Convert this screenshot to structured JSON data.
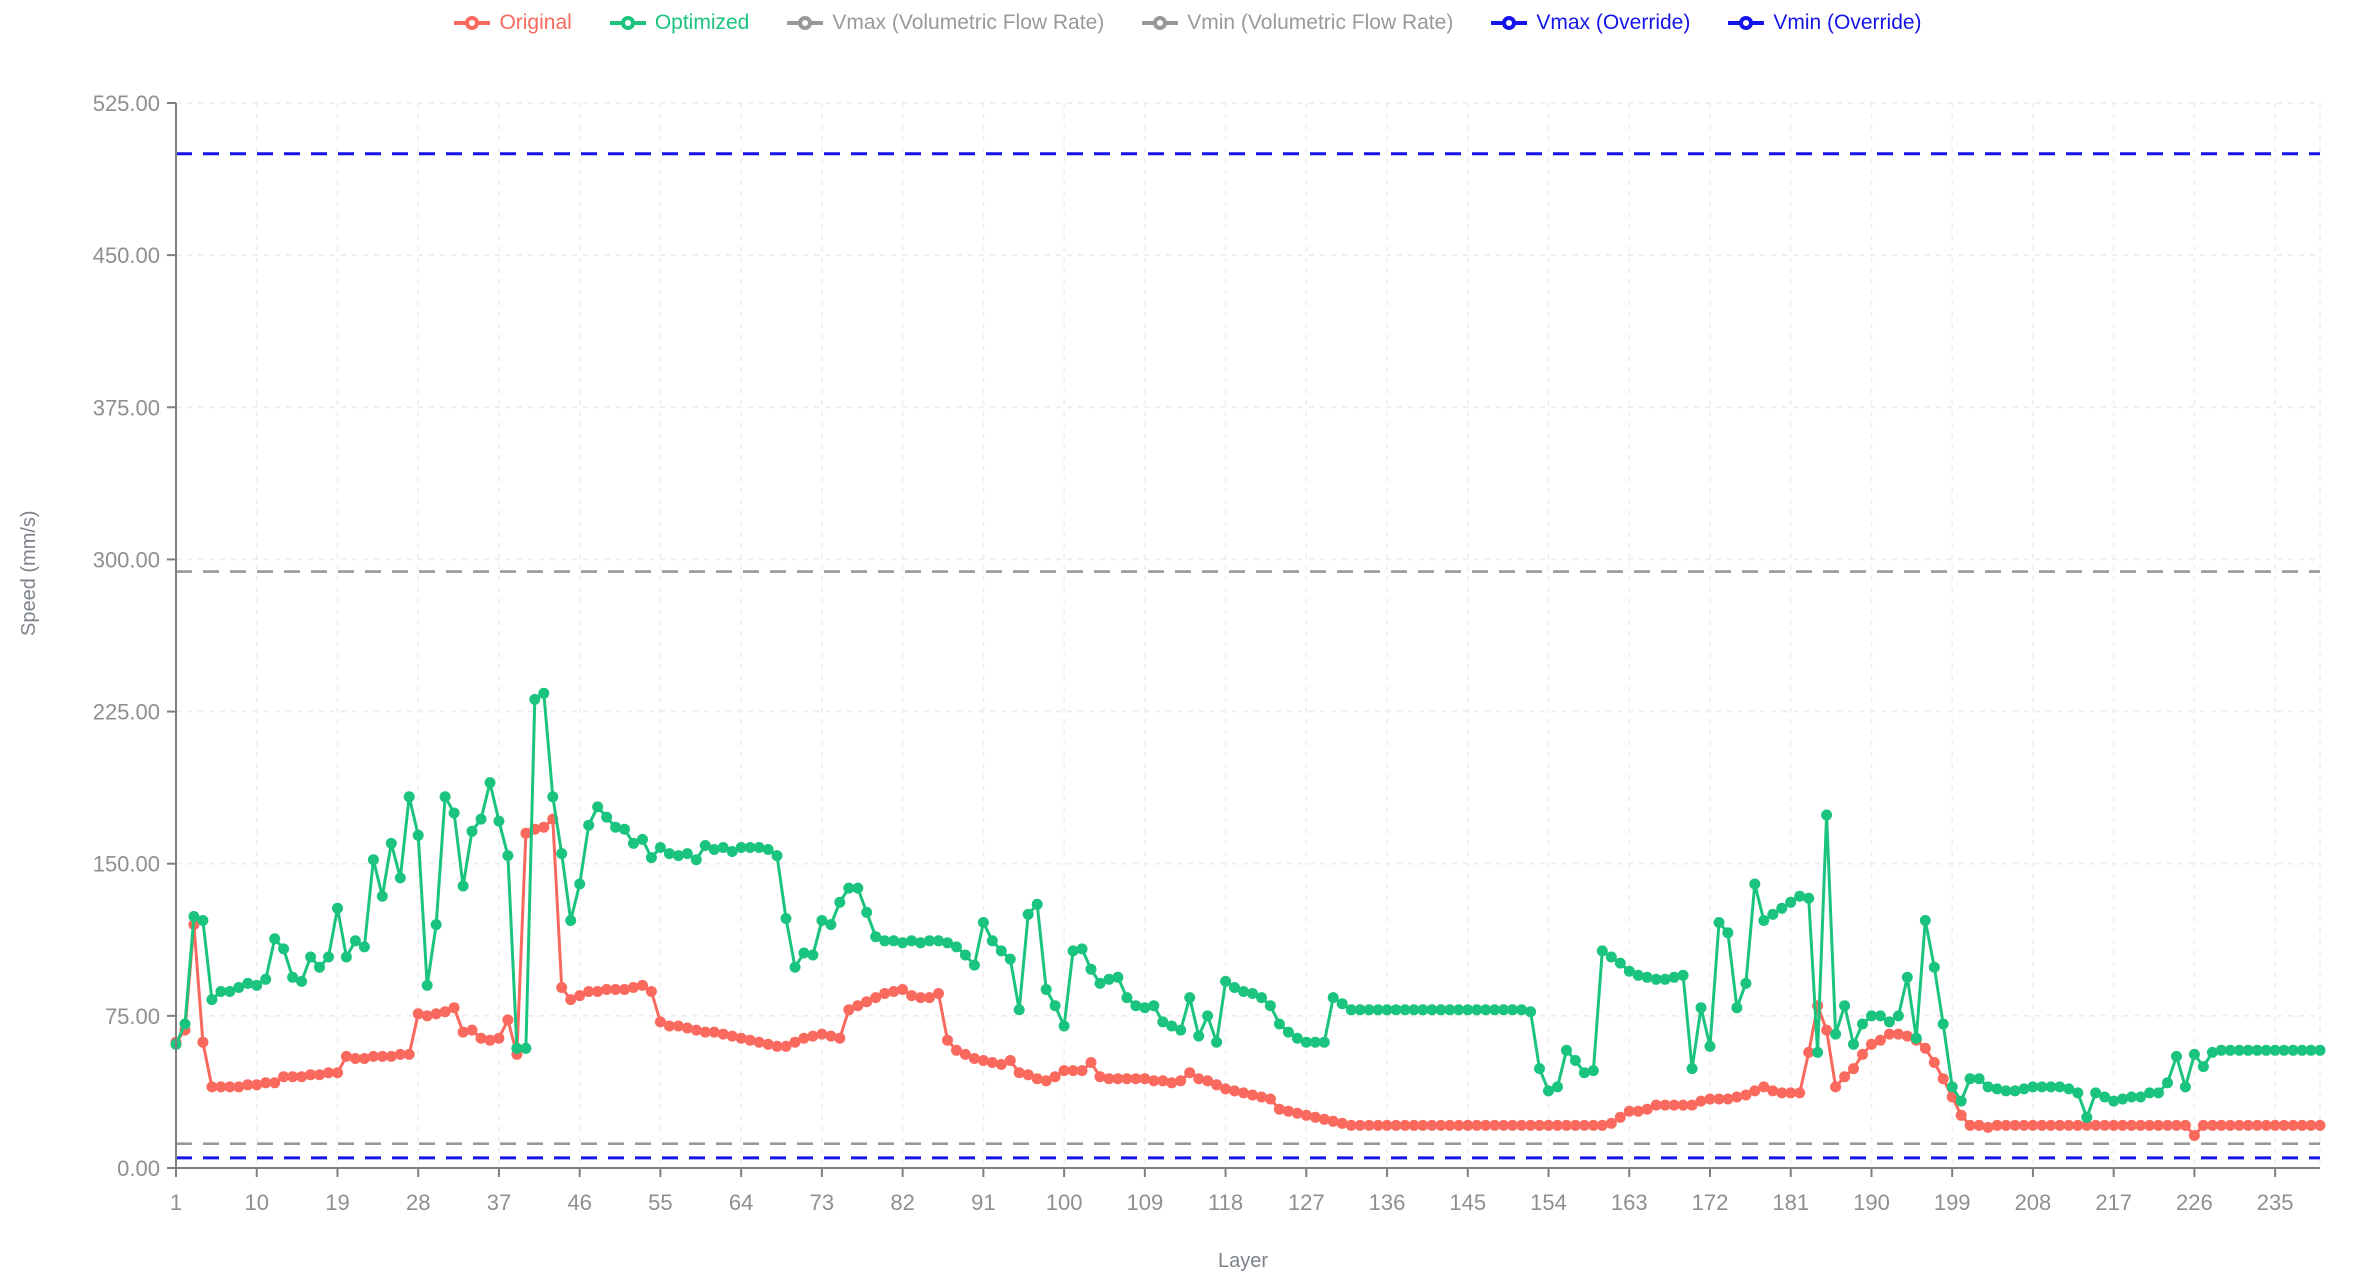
{
  "axes": {
    "x_title": "Layer",
    "y_title": "Speed (mm/s)",
    "y_tick_labels": [
      "0.00",
      "75.00",
      "150.00",
      "225.00",
      "300.00",
      "375.00",
      "450.00",
      "525.00"
    ],
    "x_tick_labels": [
      1,
      10,
      19,
      28,
      37,
      46,
      55,
      64,
      73,
      82,
      91,
      100,
      109,
      118,
      127,
      136,
      145,
      154,
      163,
      172,
      181,
      190,
      199,
      208,
      217,
      226,
      235
    ]
  },
  "legend": {
    "items": [
      {
        "label": "Original",
        "color": "#f9695e"
      },
      {
        "label": "Optimized",
        "color": "#1bc47e"
      },
      {
        "label": "Vmax (Volumetric Flow Rate)",
        "color": "#999999"
      },
      {
        "label": "Vmin (Volumetric Flow Rate)",
        "color": "#999999"
      },
      {
        "label": "Vmax (Override)",
        "color": "#1414e8"
      },
      {
        "label": "Vmin (Override)",
        "color": "#1414e8"
      }
    ]
  },
  "chart_data": {
    "type": "line",
    "title": "",
    "xlabel": "Layer",
    "ylabel": "Speed (mm/s)",
    "x_count": 240,
    "x_start": 1,
    "x_tick_step": 9,
    "ylim": [
      0,
      525
    ],
    "y_tick_step": 75,
    "grid": true,
    "legend_position": "top",
    "series": [
      {
        "name": "Original",
        "kind": "data",
        "color": "#f9695e",
        "style": "solid",
        "values": [
          62,
          68,
          120,
          62,
          40,
          40,
          40,
          40,
          41,
          41,
          42,
          42,
          45,
          45,
          45,
          46,
          46,
          47,
          47,
          55,
          54,
          54,
          55,
          55,
          55,
          56,
          56,
          76,
          75,
          76,
          77,
          79,
          67,
          68,
          64,
          63,
          64,
          73,
          56,
          165,
          167,
          168,
          172,
          89,
          83,
          85,
          87,
          87,
          88,
          88,
          88,
          89,
          90,
          87,
          72,
          70,
          70,
          69,
          68,
          67,
          67,
          66,
          65,
          64,
          63,
          62,
          61,
          60,
          60,
          62,
          64,
          65,
          66,
          65,
          64,
          78,
          80,
          82,
          84,
          86,
          87,
          88,
          85,
          84,
          84,
          86,
          63,
          58,
          56,
          54,
          53,
          52,
          51,
          53,
          47,
          46,
          44,
          43,
          45,
          48,
          48,
          48,
          52,
          45,
          44,
          44,
          44,
          44,
          44,
          43,
          43,
          42,
          43,
          47,
          44,
          43,
          41,
          39,
          38,
          37,
          36,
          35,
          34,
          29,
          28,
          27,
          26,
          25,
          24,
          23,
          22,
          21,
          21,
          21,
          21,
          21,
          21,
          21,
          21,
          21,
          21,
          21,
          21,
          21,
          21,
          21,
          21,
          21,
          21,
          21,
          21,
          21,
          21,
          21,
          21,
          21,
          21,
          21,
          21,
          21,
          22,
          25,
          28,
          28,
          29,
          31,
          31,
          31,
          31,
          31,
          33,
          34,
          34,
          34,
          35,
          36,
          38,
          40,
          38,
          37,
          37,
          37,
          57,
          80,
          68,
          40,
          45,
          49,
          56,
          61,
          63,
          66,
          66,
          65,
          63,
          59,
          52,
          44,
          35,
          26,
          21,
          21,
          20,
          21,
          21,
          21,
          21,
          21,
          21,
          21,
          21,
          21,
          21,
          21,
          21,
          21,
          21,
          21,
          21,
          21,
          21,
          21,
          21,
          21,
          21,
          16,
          21,
          21,
          21,
          21,
          21,
          21,
          21,
          21,
          21,
          21,
          21,
          21,
          21,
          21
        ]
      },
      {
        "name": "Optimized",
        "kind": "data",
        "color": "#1bc47e",
        "style": "solid",
        "values": [
          61,
          71,
          124,
          122,
          83,
          87,
          87,
          89,
          91,
          90,
          93,
          113,
          108,
          94,
          92,
          104,
          99,
          104,
          128,
          104,
          112,
          109,
          152,
          134,
          160,
          143,
          183,
          164,
          90,
          120,
          183,
          175,
          139,
          166,
          172,
          190,
          171,
          154,
          59,
          59,
          231,
          234,
          183,
          155,
          122,
          140,
          169,
          178,
          173,
          168,
          167,
          160,
          162,
          153,
          158,
          155,
          154,
          155,
          152,
          159,
          157,
          158,
          156,
          158,
          158,
          158,
          157,
          154,
          123,
          99,
          106,
          105,
          122,
          120,
          131,
          138,
          138,
          126,
          114,
          112,
          112,
          111,
          112,
          111,
          112,
          112,
          111,
          109,
          105,
          100,
          121,
          112,
          107,
          103,
          78,
          125,
          130,
          88,
          80,
          70,
          107,
          108,
          98,
          91,
          93,
          94,
          84,
          80,
          79,
          80,
          72,
          70,
          68,
          84,
          65,
          75,
          62,
          92,
          89,
          87,
          86,
          84,
          80,
          71,
          67,
          64,
          62,
          62,
          62,
          84,
          81,
          78,
          78,
          78,
          78,
          78,
          78,
          78,
          78,
          78,
          78,
          78,
          78,
          78,
          78,
          78,
          78,
          78,
          78,
          78,
          78,
          77,
          49,
          38,
          40,
          58,
          53,
          47,
          48,
          107,
          104,
          101,
          97,
          95,
          94,
          93,
          93,
          94,
          95,
          49,
          79,
          60,
          121,
          116,
          79,
          91,
          140,
          122,
          125,
          128,
          131,
          134,
          133,
          57,
          174,
          66,
          80,
          61,
          71,
          75,
          75,
          72,
          75,
          94,
          64,
          122,
          99,
          71,
          40,
          33,
          44,
          44,
          40,
          39,
          38,
          38,
          39,
          40,
          40,
          40,
          40,
          39,
          37,
          25,
          37,
          35,
          33,
          34,
          35,
          35,
          37,
          37,
          42,
          55,
          40,
          56,
          50,
          57,
          58,
          58,
          58,
          58,
          58,
          58,
          58,
          58,
          58,
          58,
          58,
          58
        ]
      },
      {
        "name": "Vmax (Volumetric Flow Rate)",
        "kind": "reference",
        "color": "#999999",
        "style": "dashed",
        "value": 294
      },
      {
        "name": "Vmin (Volumetric Flow Rate)",
        "kind": "reference",
        "color": "#999999",
        "style": "dashed",
        "value": 12
      },
      {
        "name": "Vmax (Override)",
        "kind": "reference",
        "color": "#1414e8",
        "style": "dashed",
        "value": 500
      },
      {
        "name": "Vmin (Override)",
        "kind": "reference",
        "color": "#1414e8",
        "style": "dashed",
        "value": 5
      }
    ]
  }
}
